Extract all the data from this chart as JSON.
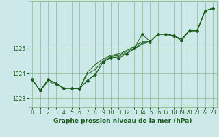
{
  "xlabel": "Graphe pression niveau de la mer (hPa)",
  "background_color": "#cce8e8",
  "grid_color": "#88bb88",
  "line_color": "#1a5c1a",
  "ylim": [
    1022.65,
    1026.9
  ],
  "xlim": [
    -0.5,
    23.5
  ],
  "yticks": [
    1023,
    1024,
    1025
  ],
  "xticks": [
    0,
    1,
    2,
    3,
    4,
    5,
    6,
    7,
    8,
    9,
    10,
    11,
    12,
    13,
    14,
    15,
    16,
    17,
    18,
    19,
    20,
    21,
    22,
    23
  ],
  "series": [
    [
      1023.75,
      1023.3,
      1023.75,
      1023.6,
      1023.4,
      1023.4,
      1023.38,
      1023.7,
      1023.95,
      1024.45,
      1024.65,
      1024.62,
      1024.78,
      1025.02,
      1025.58,
      1025.28,
      1025.58,
      1025.58,
      1025.52,
      1025.32,
      1025.72,
      1025.72,
      1026.52,
      1026.62
    ],
    [
      1023.75,
      1023.3,
      1023.75,
      1023.6,
      1023.4,
      1023.4,
      1023.38,
      1024.05,
      1024.35,
      1024.58,
      1024.72,
      1024.78,
      1024.92,
      1025.08,
      1025.28,
      1025.28,
      1025.58,
      1025.58,
      1025.52,
      1025.38,
      1025.72,
      1025.72,
      1026.52,
      1026.62
    ],
    [
      1023.75,
      1023.3,
      1023.68,
      1023.55,
      1023.4,
      1023.4,
      1023.38,
      1023.98,
      1024.15,
      1024.52,
      1024.68,
      1024.72,
      1024.88,
      1025.02,
      1025.22,
      1025.28,
      1025.58,
      1025.58,
      1025.52,
      1025.38,
      1025.72,
      1025.72,
      1026.52,
      1026.62
    ],
    [
      1023.75,
      1023.3,
      1023.75,
      1023.6,
      1023.4,
      1023.4,
      1023.38,
      1023.72,
      1023.92,
      1024.48,
      1024.62,
      1024.68,
      1024.82,
      1024.98,
      1025.18,
      1025.28,
      1025.58,
      1025.58,
      1025.52,
      1025.38,
      1025.72,
      1025.72,
      1026.52,
      1026.62
    ]
  ],
  "tick_fontsize": 5.5,
  "label_fontsize": 6.5
}
